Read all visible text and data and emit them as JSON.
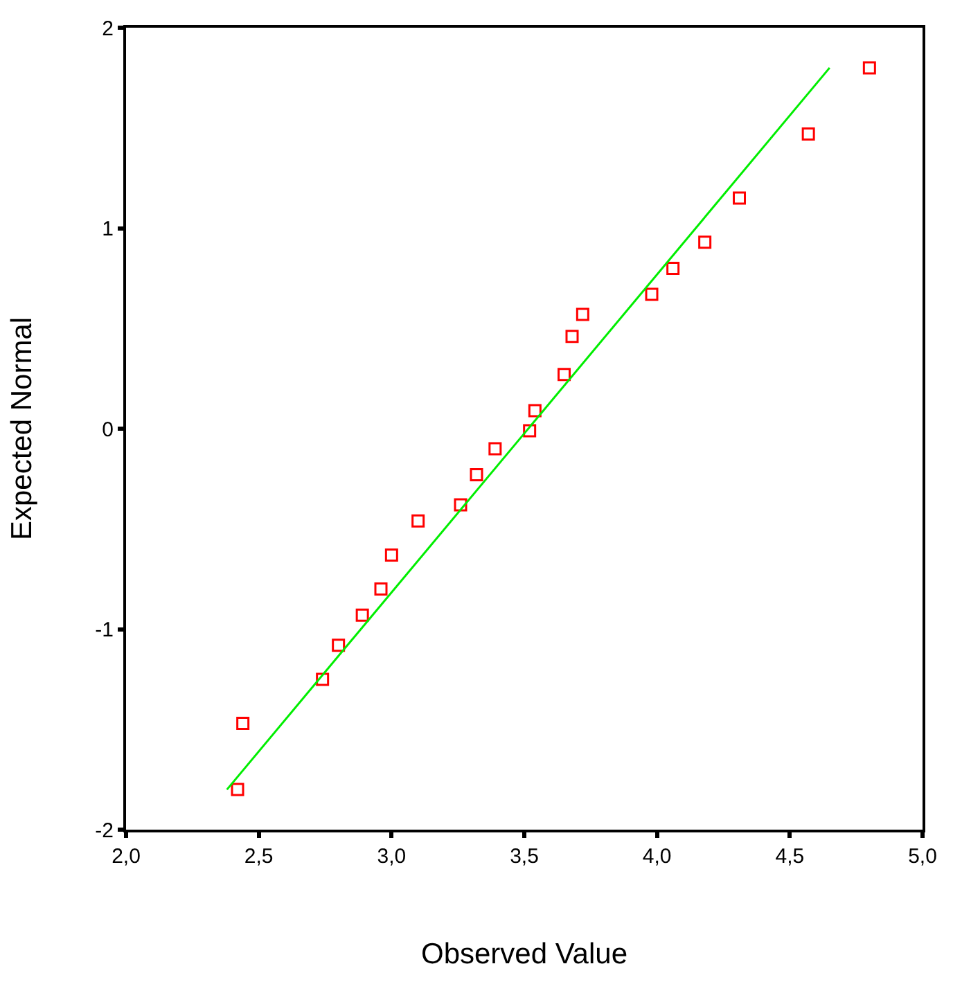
{
  "chart_data": {
    "type": "scatter",
    "xlabel": "Observed Value",
    "ylabel": "Expected Normal",
    "xlim": [
      2,
      5
    ],
    "ylim": [
      -2,
      2
    ],
    "xticks": [
      {
        "value": 2,
        "label": "2,0"
      },
      {
        "value": 2.5,
        "label": "2,5"
      },
      {
        "value": 3,
        "label": "3,0"
      },
      {
        "value": 3.5,
        "label": "3,5"
      },
      {
        "value": 4,
        "label": "4,0"
      },
      {
        "value": 4.5,
        "label": "4,5"
      },
      {
        "value": 5,
        "label": "5,0"
      }
    ],
    "yticks": [
      -2,
      -1,
      0,
      1,
      2
    ],
    "series": [
      {
        "marker": "square",
        "color": "#ff0000",
        "x": [
          2.42,
          2.44,
          2.74,
          2.8,
          2.89,
          2.96,
          3.0,
          3.1,
          3.26,
          3.32,
          3.39,
          3.52,
          3.54,
          3.65,
          3.68,
          3.72,
          3.98,
          4.06,
          4.18,
          4.31,
          4.57,
          4.8
        ],
        "values": [
          -1.8,
          -1.47,
          -1.25,
          -1.08,
          -0.93,
          -0.8,
          -0.63,
          -0.46,
          -0.38,
          -0.23,
          -0.1,
          -0.01,
          0.09,
          0.27,
          0.46,
          0.57,
          0.67,
          0.8,
          0.93,
          1.15,
          1.47,
          1.8
        ]
      },
      {
        "type": "line",
        "line_style": "solid",
        "color": "#00ee00",
        "x": [
          2.38,
          4.65
        ],
        "values": [
          -1.8,
          1.8
        ]
      }
    ]
  }
}
